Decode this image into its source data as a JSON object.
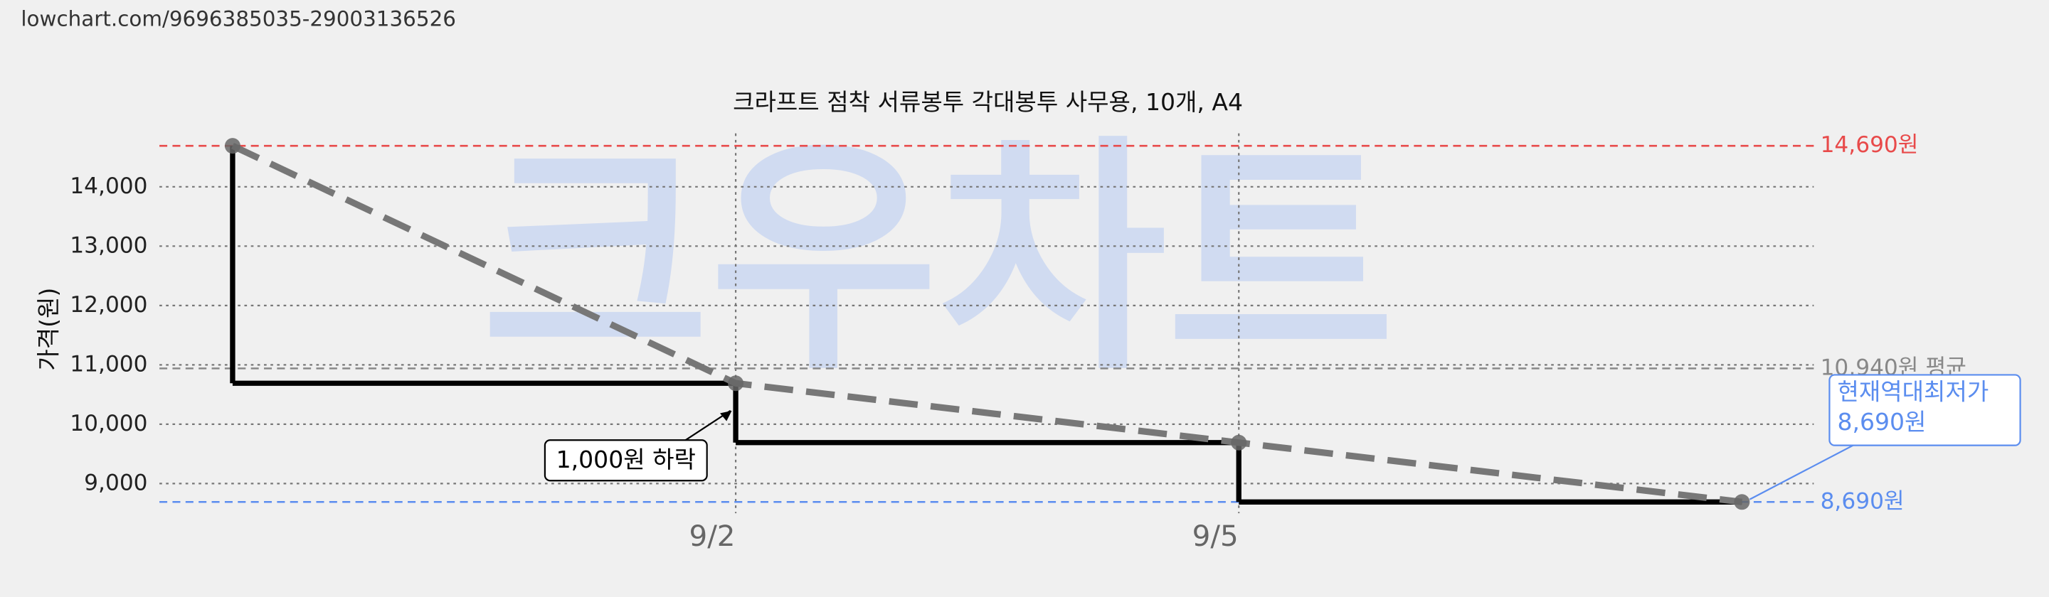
{
  "header": {
    "url": "lowchart.com/9696385035-29003136526"
  },
  "chart_data": {
    "type": "line",
    "step": true,
    "trend_line": true,
    "title": "크라프트 점착 서류봉투 각대봉투 사무용, 10개, A4",
    "y_label": "가격(원)",
    "watermark": "크우차트",
    "categories": [
      null,
      "9/2",
      "9/5",
      null
    ],
    "values": [
      14690,
      10690,
      9690,
      8690
    ],
    "value_labels": [
      null,
      null,
      null,
      "8,690원"
    ],
    "color": "#000000",
    "trend_color": "#777777",
    "marker_color": "#666666",
    "callout_title": "현재역대최저가",
    "annotation": "1,000원 하락",
    "ylim": [
      8500,
      14900
    ],
    "yticks": [
      {
        "value": 9000,
        "label": "9,000"
      },
      {
        "value": 10000,
        "label": "10,000"
      },
      {
        "value": 11000,
        "label": "11,000"
      },
      {
        "value": 12000,
        "label": "12,000"
      },
      {
        "value": 13000,
        "label": "13,000"
      },
      {
        "value": 14000,
        "label": "14,000"
      }
    ],
    "grid": true,
    "reference_lines": [
      {
        "value": 14690,
        "label": "14,690원",
        "color": "#e84a4a"
      },
      {
        "value": 10940,
        "label": "10,940원 평균",
        "color": "#888888"
      },
      {
        "value": 8690,
        "label": "8,690원",
        "color": "#5b8def"
      }
    ]
  }
}
